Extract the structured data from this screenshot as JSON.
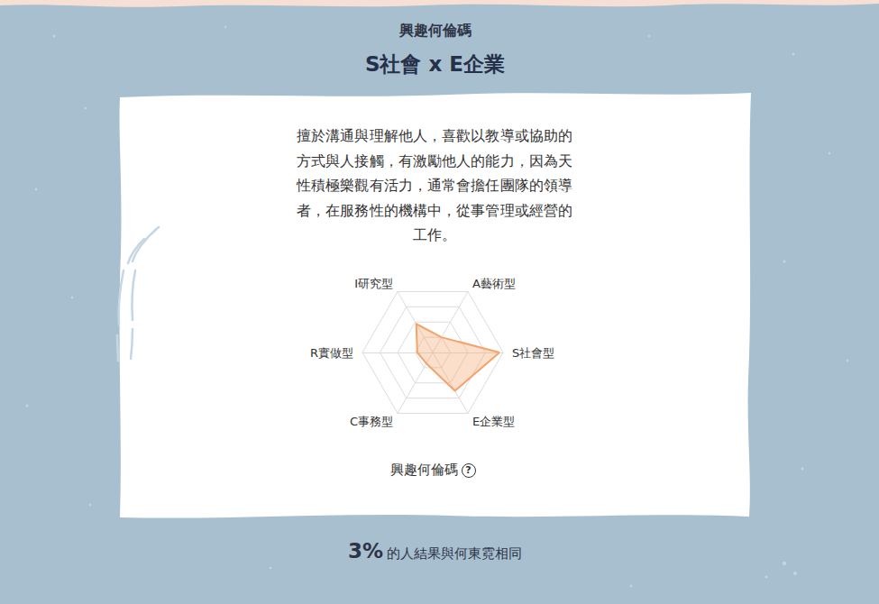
{
  "header": {
    "subtitle": "興趣何倫碼",
    "title": "S社會 x E企業"
  },
  "description": "擅於溝通與理解他人，喜歡以教導或協助的方式與人接觸，有激勵他人的能力，因為天性積極樂觀有活力，通常會擔任團隊的領導者，在服務性的機構中，從事管理或經營的工作。",
  "chart_data": {
    "type": "radar",
    "title": "興趣何倫碼",
    "categories": [
      "S社會型",
      "A藝術型",
      "I研究型",
      "R實做型",
      "C事務型",
      "E企業型"
    ],
    "values": [
      95,
      25,
      47,
      22,
      18,
      63
    ],
    "color": "#f4a46a",
    "ylim": [
      0,
      100
    ],
    "yticks": [
      0,
      25,
      50,
      75,
      100
    ],
    "grid": true,
    "tick_labels": false
  },
  "caption_icon": "?",
  "footer": {
    "share": "3%",
    "text": "的人結果與何東霓相同"
  }
}
